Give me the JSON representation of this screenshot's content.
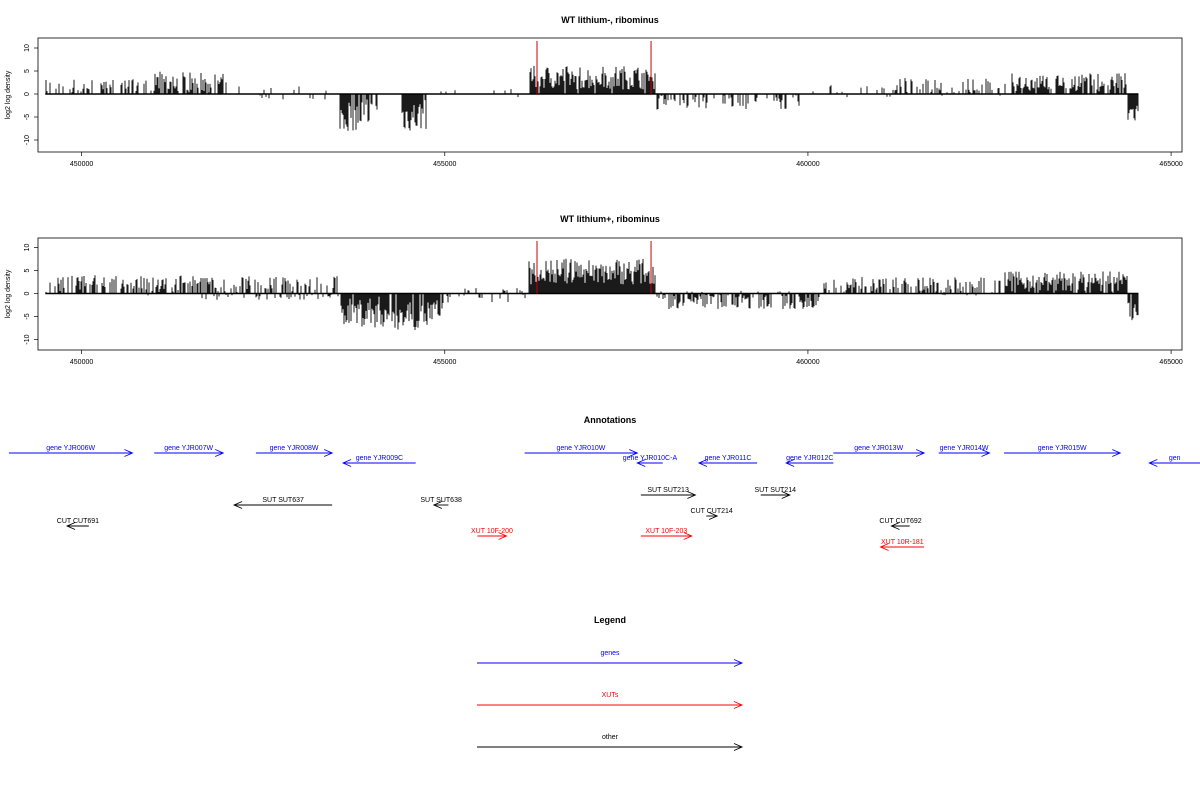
{
  "colors": {
    "gene": "#0000ff",
    "xut": "#ff0000",
    "other": "#000000",
    "boundary": "#cc0000"
  },
  "chart_data": [
    {
      "type": "bar",
      "title": "WT lithium-, ribominus",
      "ylabel": "log2 log density",
      "xlim": [
        449400,
        465150
      ],
      "ylim": [
        -12,
        12
      ],
      "xticks": [
        "450000",
        "455000",
        "460000",
        "465000"
      ],
      "yticks": [
        "10",
        "5",
        "0",
        "-5",
        "-10"
      ],
      "boundary_lines_x": [
        456270,
        457840
      ],
      "segments": [
        {
          "from": 449500,
          "to": 451000,
          "mean": 1.6,
          "amp": 1.7,
          "density": 0.45
        },
        {
          "from": 451000,
          "to": 452000,
          "mean": 2.6,
          "amp": 2.3,
          "density": 0.75
        },
        {
          "from": 452000,
          "to": 453550,
          "mean": 0.3,
          "amp": 1.6,
          "density": 0.18
        },
        {
          "from": 453550,
          "to": 454000,
          "mean": -4.5,
          "amp": 3.5,
          "density": 0.85
        },
        {
          "from": 454000,
          "to": 454400,
          "mean": -1.5,
          "amp": 2.0,
          "density": 0.2
        },
        {
          "from": 454400,
          "to": 454750,
          "mean": -4.8,
          "amp": 3.5,
          "density": 0.9
        },
        {
          "from": 454750,
          "to": 456150,
          "mean": 0.1,
          "amp": 1.0,
          "density": 0.05
        },
        {
          "from": 456150,
          "to": 457900,
          "mean": 3.6,
          "amp": 2.6,
          "density": 0.95
        },
        {
          "from": 457900,
          "to": 459900,
          "mean": -1.6,
          "amp": 1.8,
          "density": 0.45
        },
        {
          "from": 459900,
          "to": 461200,
          "mean": 0.6,
          "amp": 1.6,
          "density": 0.25
        },
        {
          "from": 461200,
          "to": 462800,
          "mean": 1.6,
          "amp": 2.0,
          "density": 0.5
        },
        {
          "from": 462800,
          "to": 464400,
          "mean": 2.6,
          "amp": 2.0,
          "density": 0.8
        },
        {
          "from": 464400,
          "to": 464550,
          "mean": -4.0,
          "amp": 2.5,
          "density": 0.9
        }
      ]
    },
    {
      "type": "bar",
      "title": "WT lithium+, ribominus",
      "ylabel": "log2 log density",
      "xlim": [
        449400,
        465150
      ],
      "ylim": [
        -12,
        12
      ],
      "xticks": [
        "450000",
        "455000",
        "460000",
        "465000"
      ],
      "yticks": [
        "10",
        "5",
        "0",
        "-5",
        "-10"
      ],
      "boundary_lines_x": [
        456270,
        457840
      ],
      "segments": [
        {
          "from": 449500,
          "to": 451500,
          "mean": 1.8,
          "amp": 2.2,
          "density": 0.7
        },
        {
          "from": 451500,
          "to": 453550,
          "mean": 1.2,
          "amp": 2.6,
          "density": 0.75
        },
        {
          "from": 453550,
          "to": 454200,
          "mean": -4.0,
          "amp": 3.5,
          "density": 0.9
        },
        {
          "from": 454200,
          "to": 455000,
          "mean": -4.5,
          "amp": 3.5,
          "density": 0.9
        },
        {
          "from": 455000,
          "to": 456150,
          "mean": -0.6,
          "amp": 1.8,
          "density": 0.4
        },
        {
          "from": 456150,
          "to": 457900,
          "mean": 4.8,
          "amp": 2.8,
          "density": 1.0
        },
        {
          "from": 457900,
          "to": 460200,
          "mean": -1.4,
          "amp": 2.0,
          "density": 0.75
        },
        {
          "from": 460200,
          "to": 462700,
          "mean": 1.6,
          "amp": 2.0,
          "density": 0.6
        },
        {
          "from": 462700,
          "to": 464400,
          "mean": 2.6,
          "amp": 2.2,
          "density": 0.9
        },
        {
          "from": 464400,
          "to": 464550,
          "mean": -4.0,
          "amp": 2.5,
          "density": 0.9
        }
      ]
    },
    {
      "type": "annotation_track",
      "title": "Annotations",
      "features": [
        {
          "label": "gene YJR006W",
          "kind": "gene",
          "strand": "+",
          "start": 449000,
          "end": 450700,
          "row": 0
        },
        {
          "label": "gene YJR007W",
          "kind": "gene",
          "strand": "+",
          "start": 451000,
          "end": 451950,
          "row": 0
        },
        {
          "label": "gene YJR008W",
          "kind": "gene",
          "strand": "+",
          "start": 452400,
          "end": 453450,
          "row": 0
        },
        {
          "label": "gene YJR009C",
          "kind": "gene",
          "strand": "-",
          "start": 453600,
          "end": 454600,
          "row": 1
        },
        {
          "label": "gene YJR010W",
          "kind": "gene",
          "strand": "+",
          "start": 456100,
          "end": 457650,
          "row": 0
        },
        {
          "label": "gene YJR010C-A",
          "kind": "gene",
          "strand": "-",
          "start": 457650,
          "end": 458000,
          "row": 1
        },
        {
          "label": "gene YJR011C",
          "kind": "gene",
          "strand": "-",
          "start": 458500,
          "end": 459300,
          "row": 1
        },
        {
          "label": "gene YJR012C",
          "kind": "gene",
          "strand": "-",
          "start": 459700,
          "end": 460350,
          "row": 1
        },
        {
          "label": "gene YJR013W",
          "kind": "gene",
          "strand": "+",
          "start": 460350,
          "end": 461600,
          "row": 0
        },
        {
          "label": "gene YJR014W",
          "kind": "gene",
          "strand": "+",
          "start": 461800,
          "end": 462500,
          "row": 0
        },
        {
          "label": "gene YJR015W",
          "kind": "gene",
          "strand": "+",
          "start": 462700,
          "end": 464300,
          "row": 0
        },
        {
          "label": "gen",
          "kind": "gene",
          "strand": "-",
          "start": 464700,
          "end": 465600,
          "row": 1
        },
        {
          "label": "SUT SUT637",
          "kind": "other",
          "strand": "-",
          "start": 452100,
          "end": 453450,
          "row": 3
        },
        {
          "label": "SUT SUT638",
          "kind": "other",
          "strand": "-",
          "start": 454850,
          "end": 455050,
          "row": 3
        },
        {
          "label": "SUT SUT213",
          "kind": "other",
          "strand": "+",
          "start": 457700,
          "end": 458450,
          "row": 2
        },
        {
          "label": "SUT SUT214",
          "kind": "other",
          "strand": "+",
          "start": 459350,
          "end": 459750,
          "row": 2
        },
        {
          "label": "CUT CUT214",
          "kind": "other",
          "strand": "+",
          "start": 458600,
          "end": 458750,
          "row": 4
        },
        {
          "label": "CUT CUT691",
          "kind": "other",
          "strand": "-",
          "start": 449800,
          "end": 450100,
          "row": 5
        },
        {
          "label": "CUT CUT692",
          "kind": "other",
          "strand": "-",
          "start": 461150,
          "end": 461400,
          "row": 5
        },
        {
          "label": "XUT 10F-200",
          "kind": "xut",
          "strand": "+",
          "start": 455450,
          "end": 455850,
          "row": 6
        },
        {
          "label": "XUT 10F-203",
          "kind": "xut",
          "strand": "+",
          "start": 457700,
          "end": 458400,
          "row": 6
        },
        {
          "label": "XUT 10R-181",
          "kind": "xut",
          "strand": "-",
          "start": 461000,
          "end": 461600,
          "row": 7
        }
      ]
    }
  ],
  "legend": {
    "title": "Legend",
    "items": [
      {
        "label": "genes",
        "color": "#0000ff"
      },
      {
        "label": "XUTs",
        "color": "#ff0000"
      },
      {
        "label": "other",
        "color": "#000000"
      }
    ]
  }
}
